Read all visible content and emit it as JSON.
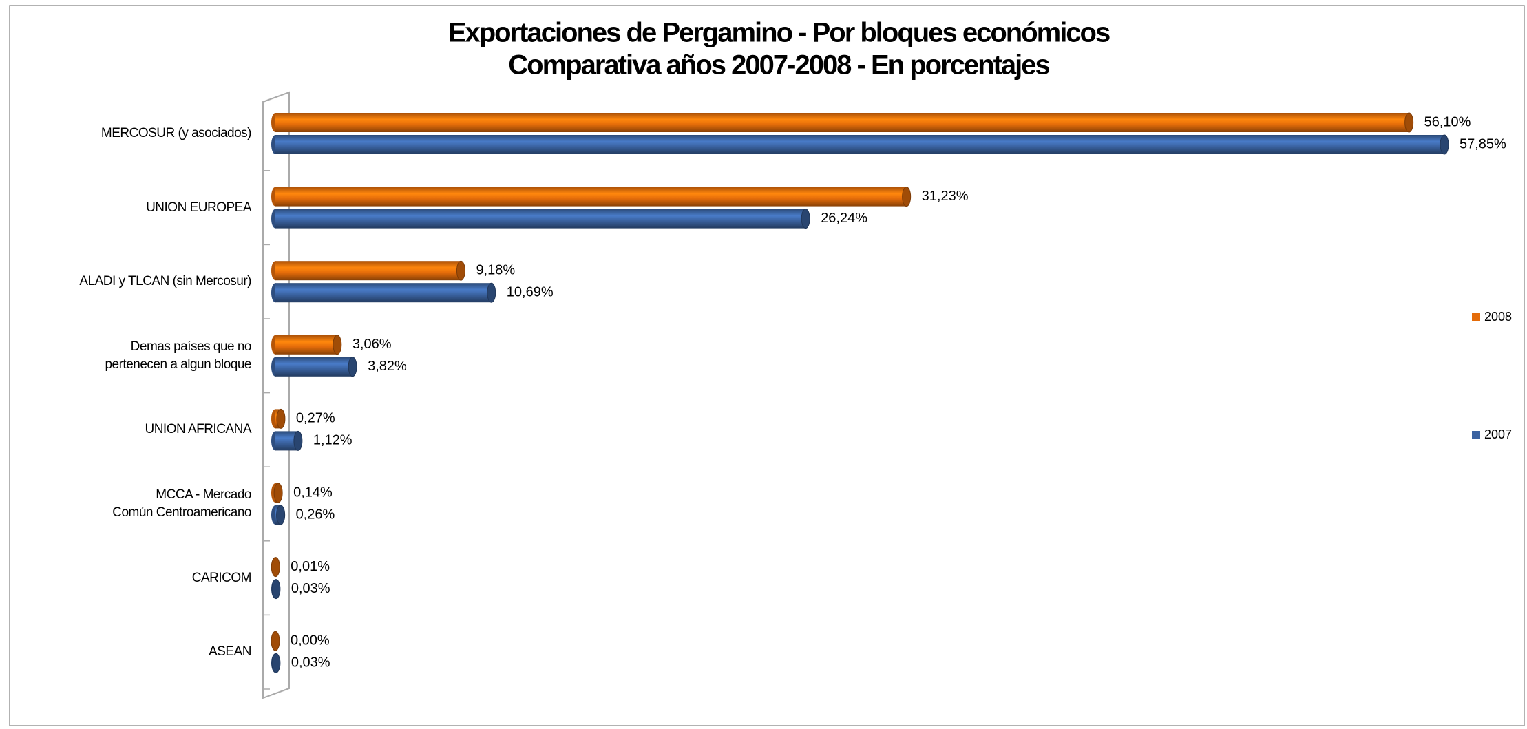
{
  "chart_data": {
    "type": "bar",
    "orientation": "horizontal",
    "style": "3d-cylinder",
    "title": "Exportaciones de Pergamino - Por bloques económicos",
    "subtitle": "Comparativa años 2007-2008 - En porcentajes",
    "categories": [
      "MERCOSUR (y asociados)",
      "UNION EUROPEA",
      "ALADI y TLCAN (sin Mercosur)",
      "Demas países que no\npertenecen a algun bloque",
      "UNION AFRICANA",
      "MCCA - Mercado\nComún Centroamericano",
      "CARICOM",
      "ASEAN"
    ],
    "series": [
      {
        "name": "2008",
        "color": "#e46c0a",
        "values": [
          56.1,
          31.23,
          9.18,
          3.06,
          0.27,
          0.14,
          0.01,
          0.0
        ],
        "value_labels": [
          "56,10%",
          "31,23%",
          "9,18%",
          "3,06%",
          "0,27%",
          "0,14%",
          "0,01%",
          "0,00%"
        ]
      },
      {
        "name": "2007",
        "color": "#3a62a0",
        "values": [
          57.85,
          26.24,
          10.69,
          3.82,
          1.12,
          0.26,
          0.03,
          0.03
        ],
        "value_labels": [
          "57,85%",
          "26,24%",
          "10,69%",
          "3,82%",
          "1,12%",
          "0,26%",
          "0,03%",
          "0,03%"
        ]
      }
    ],
    "legend": "right"
  }
}
